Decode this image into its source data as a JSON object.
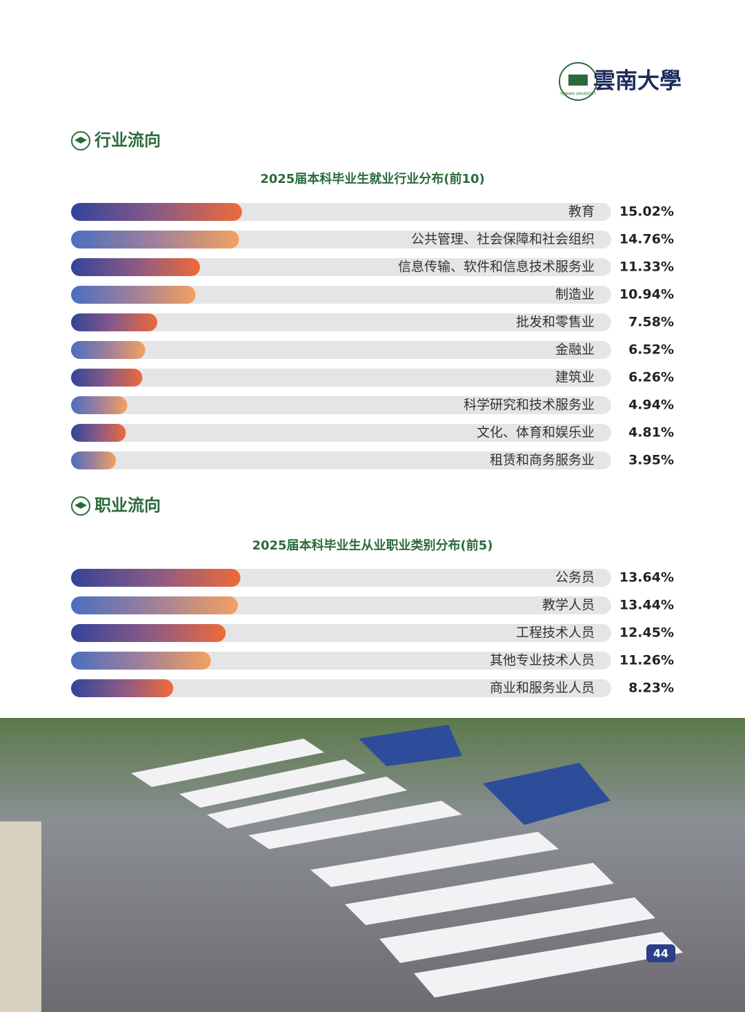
{
  "logo": {
    "seal_text": "YUNNAN UNIVERSITY",
    "name": "雲南大學"
  },
  "sections": [
    {
      "heading": "行业流向"
    },
    {
      "heading": "职业流向"
    }
  ],
  "chart_data": [
    {
      "type": "bar",
      "title": "2025届本科毕业生就业行业分布(前10)",
      "categories": [
        "教育",
        "公共管理、社会保障和社会组织",
        "信息传输、软件和信息技术服务业",
        "制造业",
        "批发和零售业",
        "金融业",
        "建筑业",
        "科学研究和技术服务业",
        "文化、体育和娱乐业",
        "租赁和商务服务业"
      ],
      "values": [
        15.02,
        14.76,
        11.33,
        10.94,
        7.58,
        6.52,
        6.26,
        4.94,
        4.81,
        3.95
      ],
      "value_labels": [
        "15.02%",
        "14.76%",
        "11.33%",
        "10.94%",
        "7.58%",
        "6.52%",
        "6.26%",
        "4.94%",
        "4.81%",
        "3.95%"
      ]
    },
    {
      "type": "bar",
      "title": "2025届本科毕业生从业职业类别分布(前5)",
      "categories": [
        "公务员",
        "教学人员",
        "工程技术人员",
        "其他专业技术人员",
        "商业和服务业人员"
      ],
      "values": [
        13.64,
        13.44,
        12.45,
        11.26,
        8.23
      ],
      "value_labels": [
        "13.64%",
        "13.44%",
        "12.45%",
        "11.26%",
        "8.23%"
      ]
    }
  ],
  "page_number": "44"
}
